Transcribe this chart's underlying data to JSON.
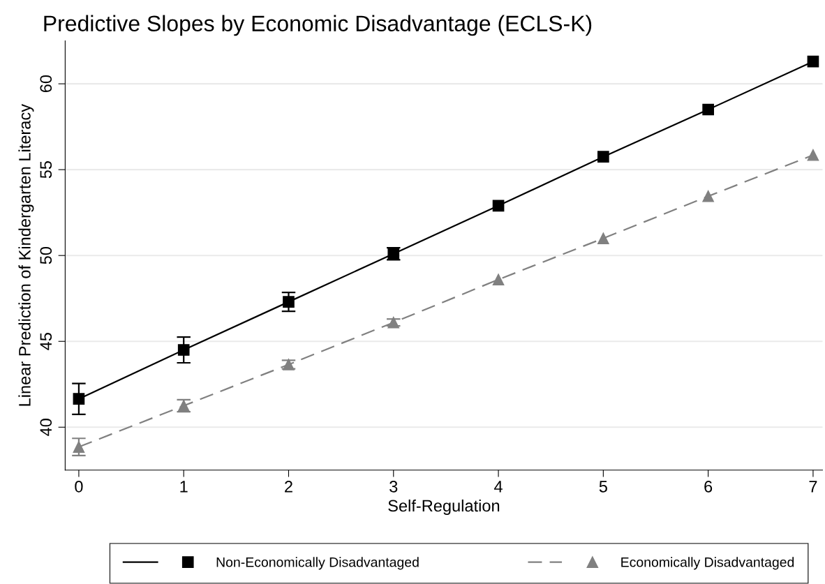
{
  "chart_data": {
    "type": "line",
    "title": "Predictive Slopes by Economic Disadvantage (ECLS-K)",
    "xlabel": "Self-Regulation",
    "ylabel": "Linear Prediction of Kindergarten Literacy",
    "x": [
      0,
      1,
      2,
      3,
      4,
      5,
      6,
      7
    ],
    "series": [
      {
        "name": "Non-Economically Disadvantaged",
        "color": "#000000",
        "marker": "square",
        "line_style": "solid",
        "values": [
          41.65,
          44.5,
          47.3,
          50.1,
          52.9,
          55.75,
          58.5,
          61.3
        ],
        "errors": [
          0.9,
          0.75,
          0.55,
          0.35,
          null,
          null,
          null,
          null
        ]
      },
      {
        "name": "Economically Disadvantaged",
        "color": "#808080",
        "marker": "triangle",
        "line_style": "dashed",
        "values": [
          38.85,
          41.25,
          43.65,
          46.1,
          48.6,
          51.0,
          53.45,
          55.85
        ],
        "errors": [
          0.5,
          0.35,
          0.25,
          0.2,
          null,
          null,
          null,
          null
        ]
      }
    ],
    "xlim": [
      -0.13,
      7.09
    ],
    "xticks": [
      0,
      1,
      2,
      3,
      4,
      5,
      6,
      7
    ],
    "ylim": [
      37.5,
      62.5
    ],
    "yticks": [
      40,
      45,
      50,
      55,
      60
    ],
    "grid": "y",
    "legend": "bottom"
  }
}
